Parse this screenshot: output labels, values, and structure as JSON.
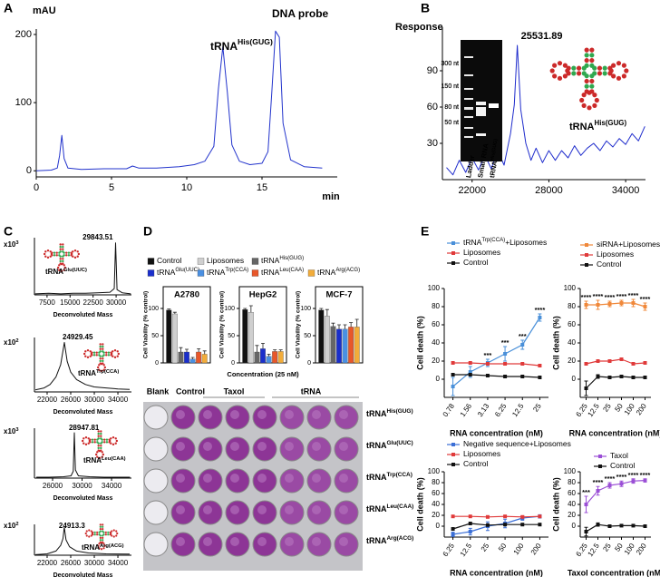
{
  "chart_data": [
    {
      "type": "line",
      "panel": "A",
      "y_label": "mAU",
      "x_label": "min",
      "annotations": [
        {
          "text": "tRNA",
          "sup": "His(GUG)"
        },
        {
          "text": "DNA probe"
        }
      ],
      "x": [
        0,
        1,
        1.4,
        1.55,
        1.7,
        1.85,
        2.1,
        3,
        4.5,
        6,
        6.4,
        6.8,
        8,
        9.5,
        10.5,
        11.2,
        11.8,
        12.1,
        12.4,
        12.7,
        13,
        13.5,
        14.2,
        15,
        15.4,
        15.65,
        15.9,
        16.15,
        16.4,
        16.9,
        17.8,
        19
      ],
      "series": [
        {
          "color": "#2233cc",
          "values": [
            0,
            1,
            4,
            22,
            52,
            18,
            4,
            2,
            3,
            3,
            7,
            4,
            4,
            6,
            9,
            14,
            36,
            120,
            182,
            115,
            38,
            14,
            9,
            11,
            28,
            115,
            205,
            196,
            70,
            16,
            6,
            4
          ]
        }
      ],
      "xlim": [
        0,
        20
      ],
      "ylim": [
        -9,
        208
      ],
      "xticks": [
        0,
        5,
        10,
        15
      ],
      "yticks": [
        0,
        100,
        200
      ]
    },
    {
      "type": "line",
      "panel": "B",
      "y_label": "Response",
      "peak": 25531.89,
      "label": "tRNA",
      "label_sup": "His(GUG)",
      "gel_labels": [
        "300 nt",
        "150 nt",
        "80 nt",
        "50 nt"
      ],
      "lane_labels": [
        "Ladder",
        "Small RNA",
        "tRNA"
      ],
      "lane_label_sup": "His(GUG)",
      "x": [
        20000,
        20500,
        21000,
        21500,
        22000,
        22500,
        23000,
        23500,
        24000,
        24500,
        25000,
        25300,
        25531.89,
        25800,
        26200,
        26600,
        27000,
        27500,
        28000,
        28500,
        29000,
        29500,
        30000,
        30500,
        31000,
        31500,
        32000,
        32500,
        33000,
        33500,
        34000,
        34500,
        35000,
        35500
      ],
      "series": [
        {
          "color": "#1f2ccc",
          "values": [
            10,
            4,
            16,
            6,
            18,
            8,
            20,
            9,
            24,
            12,
            38,
            62,
            111,
            58,
            30,
            16,
            26,
            14,
            24,
            16,
            24,
            18,
            28,
            20,
            26,
            30,
            24,
            32,
            27,
            34,
            29,
            38,
            32,
            44
          ]
        }
      ],
      "xlim": [
        19680,
        35550
      ],
      "ylim": [
        0,
        126
      ],
      "xticks": [
        22000,
        28000,
        34000
      ],
      "yticks": [
        30,
        60,
        90
      ]
    },
    {
      "type": "line",
      "panel": "C",
      "y_label": "x10",
      "y_label_sup": "3",
      "x_label": "Deconvoluted Mass",
      "peak": 29843.51,
      "label": "tRNA",
      "label_sup": "Glu(UUC)",
      "x": [
        3600,
        8000,
        12000,
        16000,
        20000,
        24000,
        28000,
        29400,
        29843.51,
        30300,
        32000,
        34800
      ],
      "series": [
        {
          "color": "#111111",
          "values": [
            0.02,
            0.03,
            0.02,
            0.03,
            0.03,
            0.04,
            0.05,
            0.12,
            1,
            0.1,
            0.04,
            0.02
          ]
        }
      ],
      "xlim": [
        3400,
        35000
      ],
      "ylim": [
        0,
        1.1
      ],
      "xticks": [
        7500,
        15000,
        22500,
        30000
      ]
    },
    {
      "type": "line",
      "y_label": "x10",
      "y_label_sup": "2",
      "x_label": "Deconvoluted Mass",
      "peak": 24929.45,
      "label": "tRNA",
      "label_sup": "Trp(CCA)",
      "x": [
        20000,
        21500,
        22500,
        23500,
        24300,
        24929.45,
        25400,
        26000,
        27000,
        28500,
        30000,
        32000,
        34000,
        36000
      ],
      "series": [
        {
          "color": "#111111",
          "values": [
            0.04,
            0.08,
            0.15,
            0.3,
            0.55,
            1,
            0.62,
            0.4,
            0.25,
            0.15,
            0.1,
            0.08,
            0.06,
            0.05
          ]
        }
      ],
      "xlim": [
        19850,
        36300
      ],
      "ylim": [
        0,
        1.1
      ],
      "xticks": [
        22000,
        26000,
        30000,
        34000
      ]
    },
    {
      "type": "line",
      "y_label": "x10",
      "y_label_sup": "3",
      "x_label": "Deconvoluted Mass",
      "peak": 28947.81,
      "label": "tRNA",
      "label_sup": "Leu(CAA)",
      "x": [
        23800,
        25500,
        27500,
        28500,
        28800,
        28947.81,
        29100,
        29500,
        31000,
        33000,
        36500
      ],
      "series": [
        {
          "color": "#111111",
          "values": [
            0.02,
            0.02,
            0.03,
            0.05,
            0.15,
            1,
            0.18,
            0.05,
            0.03,
            0.02,
            0.02
          ]
        }
      ],
      "xlim": [
        23540,
        36700
      ],
      "ylim": [
        0,
        1.1
      ],
      "xticks": [
        26000,
        30000,
        34000
      ]
    },
    {
      "type": "line",
      "y_label": "x10",
      "y_label_sup": "2",
      "x_label": "Deconvoluted Mass",
      "peak": 24913.3,
      "label": "tRNA",
      "label_sup": "Arg(ACG)",
      "x": [
        20000,
        22000,
        23500,
        24300,
        24700,
        24913.3,
        25200,
        25800,
        27000,
        29000,
        32000,
        36000
      ],
      "series": [
        {
          "color": "#111111",
          "values": [
            0.02,
            0.05,
            0.15,
            0.35,
            0.6,
            1,
            0.55,
            0.3,
            0.15,
            0.08,
            0.05,
            0.04
          ]
        }
      ],
      "xlim": [
        19850,
        36300
      ],
      "ylim": [
        0,
        1.1
      ],
      "xticks": [
        22000,
        26000,
        30000,
        34000
      ]
    },
    {
      "type": "bar",
      "panel": "D",
      "categories": [
        "A2780",
        "HepG2",
        "MCF-7"
      ],
      "y_label": "Cell Viability (% control)",
      "x_label": "Concentration (25 nM)",
      "ylim": [
        0,
        140
      ],
      "yticks": [
        0,
        50,
        100
      ],
      "series": [
        {
          "name": "Control",
          "color": "#111111",
          "values": [
            97,
            98,
            97
          ],
          "errors": [
            2,
            2,
            3
          ]
        },
        {
          "name": "Liposomes",
          "color": "#cfcfcf",
          "values": [
            90,
            93,
            86
          ],
          "errors": [
            3,
            12,
            12
          ]
        },
        {
          "name": "tRNA",
          "name_sup": "His(GUG)",
          "color": "#666666",
          "values": [
            20,
            20,
            67
          ],
          "errors": [
            8,
            12,
            6
          ]
        },
        {
          "name": "tRNA",
          "name_sup": "Glu(UUC)",
          "color": "#1a2fcc",
          "values": [
            20,
            26,
            62
          ],
          "errors": [
            5,
            10,
            8
          ]
        },
        {
          "name": "tRNA",
          "name_sup": "Trp(CCA)",
          "color": "#4a90e2",
          "values": [
            7,
            12,
            62
          ],
          "errors": [
            3,
            4,
            8
          ]
        },
        {
          "name": "tRNA",
          "name_sup": "Leu(CAA)",
          "color": "#e8572a",
          "values": [
            20,
            21,
            66
          ],
          "errors": [
            6,
            3,
            8
          ]
        },
        {
          "name": "tRNA",
          "name_sup": "Arg(ACG)",
          "color": "#f2ac3a",
          "values": [
            16,
            21,
            66
          ],
          "errors": [
            6,
            3,
            14
          ]
        }
      ]
    },
    {
      "type": "line",
      "panel": "E",
      "categories": [
        "0.78",
        "1.56",
        "3.13",
        "6.25",
        "12.5",
        "25"
      ],
      "x_label": "RNA concentration (nM)",
      "y_label": "Cell death (%)",
      "ylim": [
        -20,
        100
      ],
      "yticks": [
        0,
        20,
        40,
        60,
        80,
        100
      ],
      "star_labels": [
        null,
        null,
        "***",
        "***",
        "***",
        "****"
      ],
      "series": [
        {
          "name": "tRNA",
          "name_sup": "Trp(CCA)",
          "name_tail": "+Liposomes",
          "color": "#4a90d9",
          "values": [
            -8,
            8,
            18,
            28,
            38,
            68
          ],
          "errors": [
            10,
            6,
            4,
            8,
            5,
            4
          ]
        },
        {
          "name": "Liposomes",
          "color": "#e03a3a",
          "values": [
            18,
            18,
            17,
            17,
            17,
            15
          ]
        },
        {
          "name": "Control",
          "color": "#111111",
          "values": [
            5,
            5,
            4,
            3,
            3,
            2
          ]
        }
      ]
    },
    {
      "type": "line",
      "categories": [
        "6.25",
        "12.5",
        "25",
        "50",
        "100",
        "200"
      ],
      "x_label": "RNA concentration (nM)",
      "y_label": "Cell death (%)",
      "ylim": [
        -20,
        100
      ],
      "yticks": [
        0,
        20,
        40,
        60,
        80,
        100
      ],
      "star_labels": [
        "****",
        "****",
        "****",
        "****",
        "****",
        "****"
      ],
      "series": [
        {
          "name": "siRNA+Liposomes",
          "color": "#f0883a",
          "values": [
            82,
            82,
            83,
            84,
            84,
            80
          ],
          "errors": [
            4,
            5,
            3,
            3,
            4,
            4
          ]
        },
        {
          "name": "Liposomes",
          "color": "#e03a3a",
          "values": [
            17,
            20,
            20,
            22,
            17,
            18
          ]
        },
        {
          "name": "Control",
          "color": "#111111",
          "values": [
            -10,
            3,
            2,
            3,
            2,
            2
          ],
          "errors": [
            8,
            2,
            1,
            1,
            1,
            1
          ]
        }
      ]
    },
    {
      "type": "line",
      "categories": [
        "6.25",
        "12.5",
        "25",
        "50",
        "100",
        "200"
      ],
      "x_label": "RNA concentration (nM)",
      "y_label": "Cell death (%)",
      "ylim": [
        -20,
        100
      ],
      "yticks": [
        0,
        20,
        40,
        60,
        80,
        100
      ],
      "series": [
        {
          "name": "Negative sequence+Liposomes",
          "color": "#3b6fd6",
          "values": [
            -15,
            -10,
            0,
            5,
            15,
            18
          ],
          "errors": [
            4,
            6,
            8,
            8,
            4,
            3
          ]
        },
        {
          "name": "Liposomes",
          "color": "#e03a3a",
          "values": [
            18,
            18,
            17,
            18,
            17,
            18
          ]
        },
        {
          "name": "Control",
          "color": "#111111",
          "values": [
            -5,
            5,
            2,
            3,
            3,
            3
          ]
        }
      ]
    },
    {
      "type": "line",
      "categories": [
        "6.25",
        "12.5",
        "25",
        "50",
        "100",
        "200"
      ],
      "x_label": "Taxol concentration (nM)",
      "y_label": "Cell death (%)",
      "ylim": [
        -20,
        100
      ],
      "yticks": [
        0,
        20,
        40,
        60,
        80,
        100
      ],
      "star_labels": [
        "***",
        "****",
        "****",
        "****",
        "****",
        "****"
      ],
      "series": [
        {
          "name": "Taxol",
          "color": "#9b4fd6",
          "values": [
            40,
            65,
            75,
            78,
            83,
            84
          ],
          "errors": [
            15,
            8,
            5,
            5,
            4,
            3
          ]
        },
        {
          "name": "Control",
          "color": "#111111",
          "values": [
            -10,
            3,
            0,
            1,
            1,
            0
          ],
          "errors": [
            8,
            3,
            1,
            1,
            1,
            1
          ]
        }
      ]
    }
  ],
  "plate": {
    "column_labels": [
      "Blank",
      "Control",
      "Taxol",
      "tRNA"
    ],
    "row_labels": [
      {
        "text": "tRNA",
        "sup": "His(GUG)"
      },
      {
        "text": "tRNA",
        "sup": "Glu(UUC)"
      },
      {
        "text": "tRNA",
        "sup": "Trp(CCA)"
      },
      {
        "text": "tRNA",
        "sup": "Leu(CAA)"
      },
      {
        "text": "tRNA",
        "sup": "Arg(ACG)"
      }
    ]
  }
}
